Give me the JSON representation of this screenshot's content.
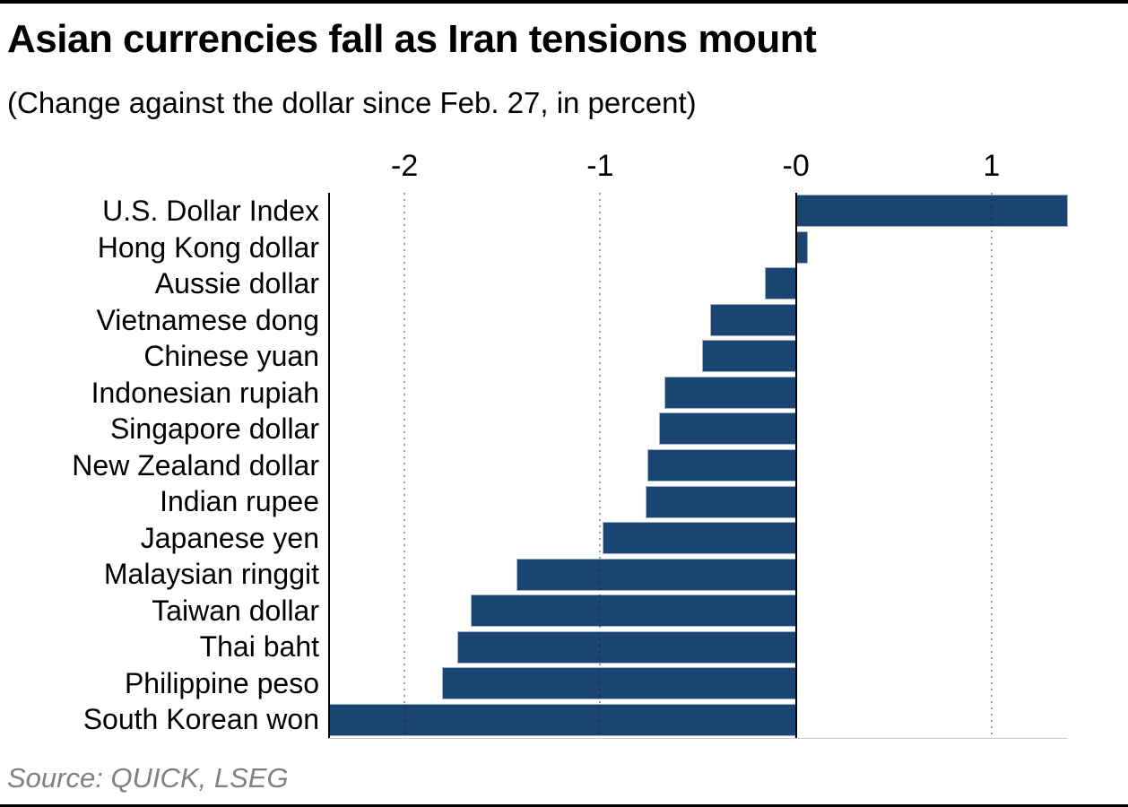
{
  "header": {
    "title": "Asian currencies fall as Iran tensions mount",
    "subtitle": "(Change against the dollar since Feb. 27, in percent)"
  },
  "footer": {
    "source": "Source: QUICK, LSEG"
  },
  "colors": {
    "bar": "#1a4472",
    "zero_line": "#000000",
    "axis_line": "#000000",
    "grid_dot": "rgba(15,25,40,0.42)",
    "source_text": "#808080",
    "rule": "#000000"
  },
  "chart_data": {
    "type": "bar",
    "orientation": "horizontal",
    "title": "Asian currencies fall as Iran tensions mount",
    "subtitle": "(Change against the dollar since Feb. 27, in percent)",
    "xlabel": "",
    "ylabel": "",
    "categories": [
      "U.S. Dollar Index",
      "Hong Kong dollar",
      "Aussie dollar",
      "Vietnamese dong",
      "Chinese yuan",
      "Indonesian rupiah",
      "Singapore dollar",
      "New Zealand dollar",
      "Indian rupee",
      "Japanese yen",
      "Malaysian ringgit",
      "Taiwan dollar",
      "Thai baht",
      "Philippine peso",
      "South Korean won"
    ],
    "values": [
      1.39,
      0.06,
      -0.16,
      -0.44,
      -0.48,
      -0.67,
      -0.7,
      -0.76,
      -0.77,
      -0.99,
      -1.43,
      -1.66,
      -1.73,
      -1.81,
      -2.39
    ],
    "xlim": [
      -2.39,
      1.39
    ],
    "x_ticks": [
      {
        "value": -2,
        "label": "-2",
        "style": "dotted"
      },
      {
        "value": -1,
        "label": "-1",
        "style": "dotted"
      },
      {
        "value": 0,
        "label": "-0",
        "style": "solid-zero-line"
      },
      {
        "value": 1,
        "label": "1",
        "style": "dotted"
      }
    ],
    "grid": "vertical dotted gridlines drawn over bars; solid black line at zero; ticks on top",
    "legend": false,
    "bar_color": "#1a4472",
    "source": "Source: QUICK, LSEG"
  }
}
